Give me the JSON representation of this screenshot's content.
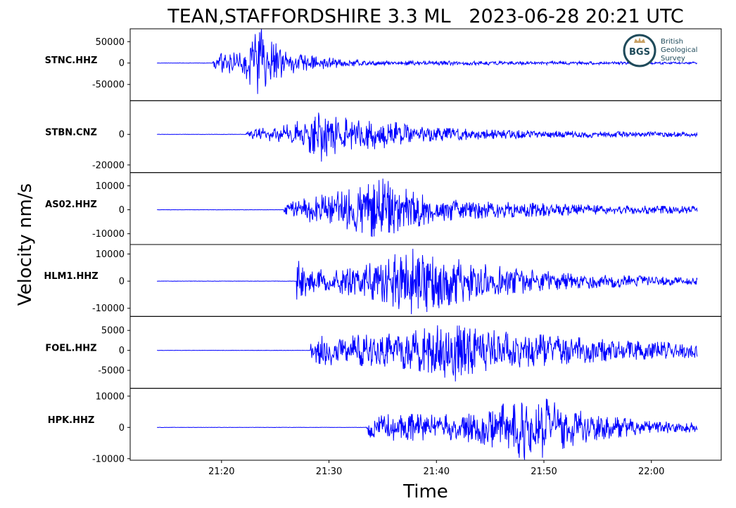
{
  "chart_data": {
    "type": "line",
    "title": "TEAN,STAFFORDSHIRE 3.3 ML   2023-06-28 20:21 UTC",
    "xlabel": "Time",
    "ylabel": "Velocity nm/s",
    "x_ticks": [
      "21:20",
      "21:30",
      "21:40",
      "21:50",
      "22:00"
    ],
    "x_tick_minutes": [
      20,
      30,
      40,
      50,
      60
    ],
    "x_range_minutes": [
      11.5,
      66.5
    ],
    "trace_start_minutes": 14,
    "trace_end_minutes": 64.3,
    "line_color": "#0000ff",
    "grid": false,
    "logo": {
      "abbr": "BGS",
      "lines": [
        "British",
        "Geological",
        "Survey"
      ],
      "color": "#1e4a5a",
      "accent": "#c8a165"
    },
    "series": [
      {
        "name": "STNC.HHZ",
        "ylim": [
          -88000,
          80000
        ],
        "yticks": [
          50000,
          0,
          -50000
        ],
        "ytick_labels": [
          "50000",
          "0",
          "-50000"
        ],
        "onset_minutes": 19.2,
        "peak_minutes": 23.3,
        "envelope": [
          [
            19.2,
            22000
          ],
          [
            21.5,
            25000
          ],
          [
            22.5,
            40000
          ],
          [
            23.0,
            78000
          ],
          [
            23.6,
            85000
          ],
          [
            24.2,
            60000
          ],
          [
            25.5,
            40000
          ],
          [
            27.0,
            20000
          ],
          [
            29.0,
            15000
          ],
          [
            33.0,
            6000
          ],
          [
            40.0,
            5000
          ],
          [
            55.0,
            3500
          ],
          [
            64.3,
            2500
          ]
        ]
      },
      {
        "name": "STBN.CNZ",
        "ylim": [
          -25000,
          22000
        ],
        "yticks": [
          0,
          -20000
        ],
        "ytick_labels": [
          "0",
          "-20000"
        ],
        "onset_minutes": 22.3,
        "peak_minutes": 29.7,
        "envelope": [
          [
            22.3,
            3500
          ],
          [
            24.5,
            4500
          ],
          [
            26.5,
            7000
          ],
          [
            28.5,
            13000
          ],
          [
            29.5,
            19000
          ],
          [
            30.5,
            13000
          ],
          [
            32.5,
            9000
          ],
          [
            35.0,
            10000
          ],
          [
            38.0,
            5000
          ],
          [
            45.0,
            3000
          ],
          [
            55.0,
            2000
          ],
          [
            64.3,
            1500
          ]
        ]
      },
      {
        "name": "AS02.HHZ",
        "ylim": [
          -14500,
          15500
        ],
        "yticks": [
          10000,
          0,
          -10000
        ],
        "ytick_labels": [
          "10000",
          "0",
          "-10000"
        ],
        "onset_minutes": 25.8,
        "peak_minutes": 35.0,
        "envelope": [
          [
            25.8,
            2500
          ],
          [
            27.5,
            4500
          ],
          [
            30.0,
            7000
          ],
          [
            33.0,
            9500
          ],
          [
            35.0,
            13000
          ],
          [
            37.0,
            9000
          ],
          [
            39.0,
            6000
          ],
          [
            42.0,
            4000
          ],
          [
            48.0,
            3000
          ],
          [
            56.0,
            1800
          ],
          [
            64.3,
            1500
          ]
        ]
      },
      {
        "name": "HLM1.HHZ",
        "ylim": [
          -13000,
          13500
        ],
        "yticks": [
          10000,
          0,
          -10000
        ],
        "ytick_labels": [
          "10000",
          "0",
          "-10000"
        ],
        "onset_minutes": 27.0,
        "peak_minutes": 37.5,
        "envelope": [
          [
            27.0,
            8000
          ],
          [
            28.0,
            5000
          ],
          [
            30.0,
            4000
          ],
          [
            33.0,
            6000
          ],
          [
            35.5,
            8000
          ],
          [
            37.0,
            12500
          ],
          [
            39.0,
            11500
          ],
          [
            41.0,
            9000
          ],
          [
            44.0,
            6500
          ],
          [
            47.0,
            5000
          ],
          [
            52.0,
            3000
          ],
          [
            58.0,
            2000
          ],
          [
            64.3,
            1200
          ]
        ]
      },
      {
        "name": "FOEL.HHZ",
        "ylim": [
          -9500,
          8500
        ],
        "yticks": [
          5000,
          0,
          -5000
        ],
        "ytick_labels": [
          "5000",
          "0",
          "-5000"
        ],
        "onset_minutes": 28.3,
        "peak_minutes": 42.2,
        "envelope": [
          [
            28.3,
            3500
          ],
          [
            31.0,
            3800
          ],
          [
            35.0,
            4000
          ],
          [
            38.0,
            5000
          ],
          [
            40.5,
            6500
          ],
          [
            42.2,
            8500
          ],
          [
            44.0,
            5500
          ],
          [
            47.0,
            4500
          ],
          [
            52.0,
            3500
          ],
          [
            57.0,
            2500
          ],
          [
            64.3,
            1800
          ]
        ]
      },
      {
        "name": "HPK.HHZ",
        "ylim": [
          -10500,
          12500
        ],
        "yticks": [
          10000,
          0,
          -10000
        ],
        "ytick_labels": [
          "10000",
          "0",
          "-10000"
        ],
        "onset_minutes": 33.5,
        "peak_minutes": 48.7,
        "envelope": [
          [
            33.5,
            3000
          ],
          [
            36.0,
            4500
          ],
          [
            40.0,
            4000
          ],
          [
            44.0,
            5000
          ],
          [
            47.0,
            8500
          ],
          [
            48.7,
            11500
          ],
          [
            50.0,
            9500
          ],
          [
            52.0,
            6500
          ],
          [
            55.0,
            4000
          ],
          [
            60.0,
            2000
          ],
          [
            64.3,
            1500
          ]
        ]
      }
    ]
  }
}
